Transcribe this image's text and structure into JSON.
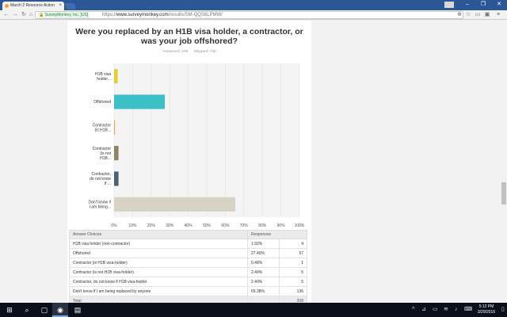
{
  "browser": {
    "tab_title": "March 2 Resource Action",
    "tab_close": "×",
    "user_chip": "",
    "secure_label": "SurveyMonkey, Inc. [US]",
    "url_scheme": "https://",
    "url_host": "www.surveymonkey.com",
    "url_path": "/results/SM-QQS6LPMW/"
  },
  "survey": {
    "question": "Were you replaced by an H1B visa holder, a contractor, or was your job offshored?",
    "answered": "Answered: 208",
    "skipped": "Skipped: 730"
  },
  "chart_data": {
    "type": "bar",
    "orientation": "horizontal",
    "categories": [
      "H1B visa holder...",
      "Offshored",
      "Contractor (is H1B...",
      "Contractor (is not H1B...",
      "Contractor, do not know if ...",
      "Don't know if I am being..."
    ],
    "values": [
      1.92,
      27.4,
      0.48,
      2.4,
      2.4,
      65.38
    ],
    "colors": [
      "#e0d02c",
      "#3cbfc7",
      "#f4a24e",
      "#8b8467",
      "#4a6273",
      "#d6d2c4"
    ],
    "xlim": [
      0,
      100
    ],
    "x_ticks": [
      "0%",
      "10%",
      "20%",
      "30%",
      "40%",
      "50%",
      "60%",
      "70%",
      "80%",
      "90%",
      "100%"
    ],
    "grid": true
  },
  "table": {
    "headers": [
      "Answer Choices",
      "Responses"
    ],
    "rows": [
      {
        "choice": "H1B visa holder (non-contractor)",
        "pct": "1.92%",
        "count": "4"
      },
      {
        "choice": "Offshored",
        "pct": "27.40%",
        "count": "57"
      },
      {
        "choice": "Contractor (is H1B visa-holder)",
        "pct": "0.48%",
        "count": "1"
      },
      {
        "choice": "Contractor (is not H1B visa-holder)",
        "pct": "2.40%",
        "count": "5"
      },
      {
        "choice": "Contractor, do not know if H1B visa-holder",
        "pct": "2.40%",
        "count": "5"
      },
      {
        "choice": "Don't know if I am being replaced by anyone",
        "pct": "65.38%",
        "count": "136"
      }
    ],
    "total_label": "Total",
    "total_count": "208"
  },
  "taskbar": {
    "time": "5:12 PM",
    "date": "3/29/2016"
  }
}
